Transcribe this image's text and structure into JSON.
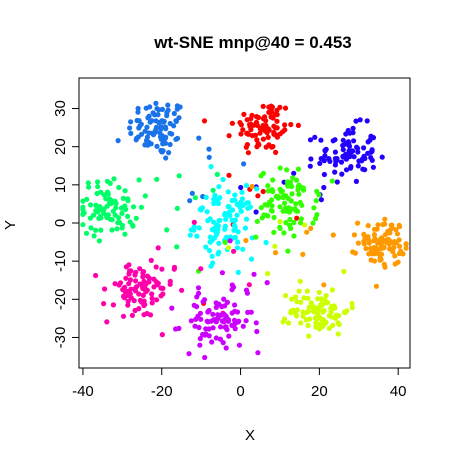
{
  "chart_data": {
    "type": "scatter",
    "title": "wt-SNE mnp@40 = 0.453",
    "xlabel": "X",
    "ylabel": "Y",
    "xlim": [
      -41,
      43
    ],
    "ylim": [
      -38,
      38
    ],
    "xticks": [
      -40,
      -20,
      0,
      20,
      40
    ],
    "yticks": [
      -30,
      -20,
      -10,
      0,
      10,
      20,
      30
    ],
    "xtick_labels": [
      "-40",
      "-20",
      "0",
      "20",
      "40"
    ],
    "ytick_labels": [
      "-30",
      "-20",
      "-10",
      "0",
      "10",
      "20",
      "30"
    ],
    "grid": false,
    "legend": "none",
    "clusters": [
      {
        "color": "#1a73e8",
        "center": [
          -21,
          25
        ],
        "spread": [
          5,
          5
        ],
        "count": 85
      },
      {
        "color": "#ff0000",
        "center": [
          6,
          25
        ],
        "spread": [
          5,
          5
        ],
        "count": 85
      },
      {
        "color": "#2200ff",
        "center": [
          27,
          18
        ],
        "spread": [
          5,
          5
        ],
        "count": 85
      },
      {
        "color": "#00ff66",
        "center": [
          -33,
          4
        ],
        "spread": [
          5,
          5
        ],
        "count": 85
      },
      {
        "color": "#00ffff",
        "center": [
          -4,
          0
        ],
        "spread": [
          5,
          6
        ],
        "count": 95
      },
      {
        "color": "#33ff00",
        "center": [
          12,
          5
        ],
        "spread": [
          5,
          6
        ],
        "count": 85
      },
      {
        "color": "#ff9900",
        "center": [
          36,
          -5
        ],
        "spread": [
          4,
          4
        ],
        "count": 85
      },
      {
        "color": "#ff00aa",
        "center": [
          -26,
          -18
        ],
        "spread": [
          6,
          5
        ],
        "count": 85
      },
      {
        "color": "#cc00ff",
        "center": [
          -6,
          -26
        ],
        "spread": [
          6,
          5
        ],
        "count": 85
      },
      {
        "color": "#ccff00",
        "center": [
          20,
          -23
        ],
        "spread": [
          5,
          4
        ],
        "count": 85
      }
    ]
  }
}
